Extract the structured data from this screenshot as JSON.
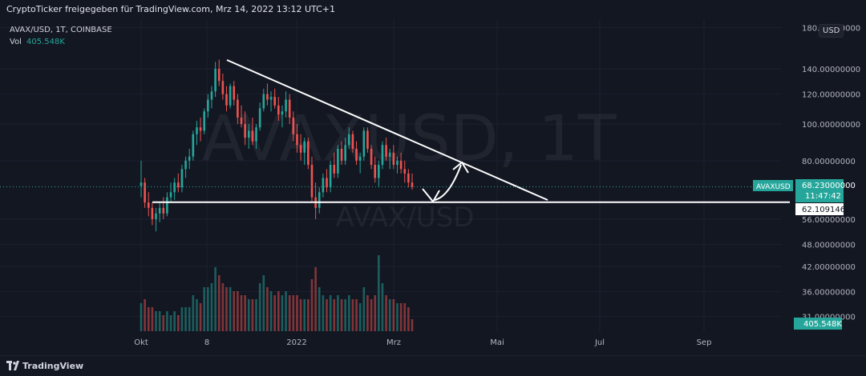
{
  "header": {
    "title": "CryptoTicker freigegeben für TradingView.com, Mrz 14, 2022 13:12 UTC+1"
  },
  "legend": {
    "symbol": "AVAX/USD, 1T, COINBASE",
    "vol_label": "Vol",
    "vol_value": "405.548K"
  },
  "currency": "USD",
  "watermark": {
    "big": "AVAXUSD, 1T",
    "small": "AVAX/USD"
  },
  "footer": {
    "brand": "TradingView"
  },
  "colors": {
    "background": "#131722",
    "up": "#26a69a",
    "down": "#ef5350",
    "price_label": "#26a69a",
    "drawing": "#ffffff"
  },
  "chart_data": {
    "type": "candlestick",
    "symbol": "AVAXUSD",
    "timeframe": "1T",
    "scale": "log",
    "x_tick_labels": [
      "Okt",
      "8",
      "2022",
      "Mrz",
      "Mai",
      "Jul",
      "Sep"
    ],
    "y_tick_labels": [
      "180.00000000",
      "140.00000000",
      "120.00000000",
      "100.00000000",
      "80.00000000",
      "56.00000000",
      "48.00000000",
      "42.00000000",
      "36.00000000",
      "31.00000000"
    ],
    "price_labels": {
      "last": {
        "label": "AVAXUSD",
        "value": "68.23000000",
        "countdown": "11:47:42"
      },
      "support": {
        "value": "62.10914682"
      },
      "volume": {
        "value": "405.548K"
      }
    },
    "ohlc": [
      {
        "o": 68.5,
        "h": 80,
        "l": 64,
        "c": 70,
        "v": 0.35
      },
      {
        "o": 70,
        "h": 72,
        "l": 60,
        "c": 62,
        "v": 0.4
      },
      {
        "o": 62,
        "h": 66,
        "l": 57,
        "c": 60,
        "v": 0.3
      },
      {
        "o": 60,
        "h": 62,
        "l": 54,
        "c": 56,
        "v": 0.3
      },
      {
        "o": 56,
        "h": 60,
        "l": 52,
        "c": 58,
        "v": 0.25
      },
      {
        "o": 58,
        "h": 62,
        "l": 55,
        "c": 60,
        "v": 0.25
      },
      {
        "o": 60,
        "h": 64,
        "l": 56,
        "c": 58,
        "v": 0.2
      },
      {
        "o": 58,
        "h": 66,
        "l": 57,
        "c": 64,
        "v": 0.25
      },
      {
        "o": 64,
        "h": 70,
        "l": 62,
        "c": 66,
        "v": 0.2
      },
      {
        "o": 66,
        "h": 72,
        "l": 63,
        "c": 70,
        "v": 0.25
      },
      {
        "o": 70,
        "h": 74,
        "l": 66,
        "c": 68,
        "v": 0.2
      },
      {
        "o": 68,
        "h": 78,
        "l": 66,
        "c": 76,
        "v": 0.3
      },
      {
        "o": 76,
        "h": 82,
        "l": 72,
        "c": 80,
        "v": 0.3
      },
      {
        "o": 80,
        "h": 86,
        "l": 76,
        "c": 82,
        "v": 0.3
      },
      {
        "o": 82,
        "h": 96,
        "l": 80,
        "c": 94,
        "v": 0.45
      },
      {
        "o": 94,
        "h": 102,
        "l": 88,
        "c": 98,
        "v": 0.4
      },
      {
        "o": 98,
        "h": 104,
        "l": 90,
        "c": 96,
        "v": 0.35
      },
      {
        "o": 96,
        "h": 110,
        "l": 94,
        "c": 108,
        "v": 0.55
      },
      {
        "o": 108,
        "h": 120,
        "l": 104,
        "c": 116,
        "v": 0.55
      },
      {
        "o": 116,
        "h": 126,
        "l": 110,
        "c": 122,
        "v": 0.6
      },
      {
        "o": 122,
        "h": 146,
        "l": 118,
        "c": 140,
        "v": 0.8
      },
      {
        "o": 140,
        "h": 148,
        "l": 126,
        "c": 130,
        "v": 0.7
      },
      {
        "o": 130,
        "h": 136,
        "l": 116,
        "c": 120,
        "v": 0.6
      },
      {
        "o": 120,
        "h": 126,
        "l": 108,
        "c": 112,
        "v": 0.55
      },
      {
        "o": 112,
        "h": 128,
        "l": 110,
        "c": 126,
        "v": 0.55
      },
      {
        "o": 126,
        "h": 130,
        "l": 112,
        "c": 116,
        "v": 0.5
      },
      {
        "o": 116,
        "h": 120,
        "l": 100,
        "c": 104,
        "v": 0.5
      },
      {
        "o": 104,
        "h": 112,
        "l": 98,
        "c": 100,
        "v": 0.45
      },
      {
        "o": 100,
        "h": 108,
        "l": 88,
        "c": 92,
        "v": 0.45
      },
      {
        "o": 92,
        "h": 100,
        "l": 86,
        "c": 96,
        "v": 0.4
      },
      {
        "o": 96,
        "h": 104,
        "l": 88,
        "c": 90,
        "v": 0.4
      },
      {
        "o": 90,
        "h": 100,
        "l": 86,
        "c": 98,
        "v": 0.4
      },
      {
        "o": 98,
        "h": 114,
        "l": 96,
        "c": 110,
        "v": 0.6
      },
      {
        "o": 110,
        "h": 124,
        "l": 108,
        "c": 120,
        "v": 0.7
      },
      {
        "o": 120,
        "h": 128,
        "l": 112,
        "c": 116,
        "v": 0.55
      },
      {
        "o": 116,
        "h": 122,
        "l": 108,
        "c": 118,
        "v": 0.5
      },
      {
        "o": 118,
        "h": 124,
        "l": 110,
        "c": 112,
        "v": 0.45
      },
      {
        "o": 112,
        "h": 118,
        "l": 102,
        "c": 106,
        "v": 0.5
      },
      {
        "o": 106,
        "h": 112,
        "l": 98,
        "c": 108,
        "v": 0.45
      },
      {
        "o": 108,
        "h": 122,
        "l": 104,
        "c": 116,
        "v": 0.5
      },
      {
        "o": 116,
        "h": 120,
        "l": 100,
        "c": 104,
        "v": 0.45
      },
      {
        "o": 104,
        "h": 108,
        "l": 90,
        "c": 94,
        "v": 0.45
      },
      {
        "o": 94,
        "h": 100,
        "l": 84,
        "c": 88,
        "v": 0.45
      },
      {
        "o": 88,
        "h": 94,
        "l": 80,
        "c": 84,
        "v": 0.4
      },
      {
        "o": 84,
        "h": 92,
        "l": 78,
        "c": 90,
        "v": 0.4
      },
      {
        "o": 90,
        "h": 92,
        "l": 76,
        "c": 78,
        "v": 0.4
      },
      {
        "o": 78,
        "h": 82,
        "l": 62,
        "c": 64,
        "v": 0.65
      },
      {
        "o": 64,
        "h": 70,
        "l": 56,
        "c": 60,
        "v": 0.8
      },
      {
        "o": 60,
        "h": 68,
        "l": 58,
        "c": 66,
        "v": 0.55
      },
      {
        "o": 66,
        "h": 74,
        "l": 64,
        "c": 72,
        "v": 0.45
      },
      {
        "o": 72,
        "h": 76,
        "l": 66,
        "c": 68,
        "v": 0.4
      },
      {
        "o": 68,
        "h": 80,
        "l": 66,
        "c": 78,
        "v": 0.45
      },
      {
        "o": 78,
        "h": 84,
        "l": 72,
        "c": 74,
        "v": 0.4
      },
      {
        "o": 74,
        "h": 88,
        "l": 72,
        "c": 86,
        "v": 0.45
      },
      {
        "o": 86,
        "h": 90,
        "l": 78,
        "c": 80,
        "v": 0.4
      },
      {
        "o": 80,
        "h": 92,
        "l": 78,
        "c": 88,
        "v": 0.4
      },
      {
        "o": 88,
        "h": 98,
        "l": 86,
        "c": 94,
        "v": 0.45
      },
      {
        "o": 94,
        "h": 96,
        "l": 84,
        "c": 86,
        "v": 0.4
      },
      {
        "o": 86,
        "h": 90,
        "l": 78,
        "c": 80,
        "v": 0.4
      },
      {
        "o": 80,
        "h": 84,
        "l": 74,
        "c": 82,
        "v": 0.35
      },
      {
        "o": 82,
        "h": 98,
        "l": 80,
        "c": 96,
        "v": 0.55
      },
      {
        "o": 96,
        "h": 98,
        "l": 84,
        "c": 86,
        "v": 0.45
      },
      {
        "o": 86,
        "h": 88,
        "l": 76,
        "c": 78,
        "v": 0.4
      },
      {
        "o": 78,
        "h": 82,
        "l": 70,
        "c": 72,
        "v": 0.45
      },
      {
        "o": 72,
        "h": 80,
        "l": 68,
        "c": 78,
        "v": 0.95
      },
      {
        "o": 78,
        "h": 90,
        "l": 76,
        "c": 88,
        "v": 0.6
      },
      {
        "o": 88,
        "h": 92,
        "l": 80,
        "c": 82,
        "v": 0.45
      },
      {
        "o": 82,
        "h": 86,
        "l": 76,
        "c": 84,
        "v": 0.4
      },
      {
        "o": 84,
        "h": 88,
        "l": 76,
        "c": 78,
        "v": 0.4
      },
      {
        "o": 78,
        "h": 82,
        "l": 74,
        "c": 80,
        "v": 0.35
      },
      {
        "o": 80,
        "h": 84,
        "l": 74,
        "c": 76,
        "v": 0.35
      },
      {
        "o": 76,
        "h": 80,
        "l": 70,
        "c": 74,
        "v": 0.35
      },
      {
        "o": 74,
        "h": 76,
        "l": 68,
        "c": 70,
        "v": 0.3
      },
      {
        "o": 70,
        "h": 74,
        "l": 67,
        "c": 68.23,
        "v": 0.15
      }
    ]
  }
}
